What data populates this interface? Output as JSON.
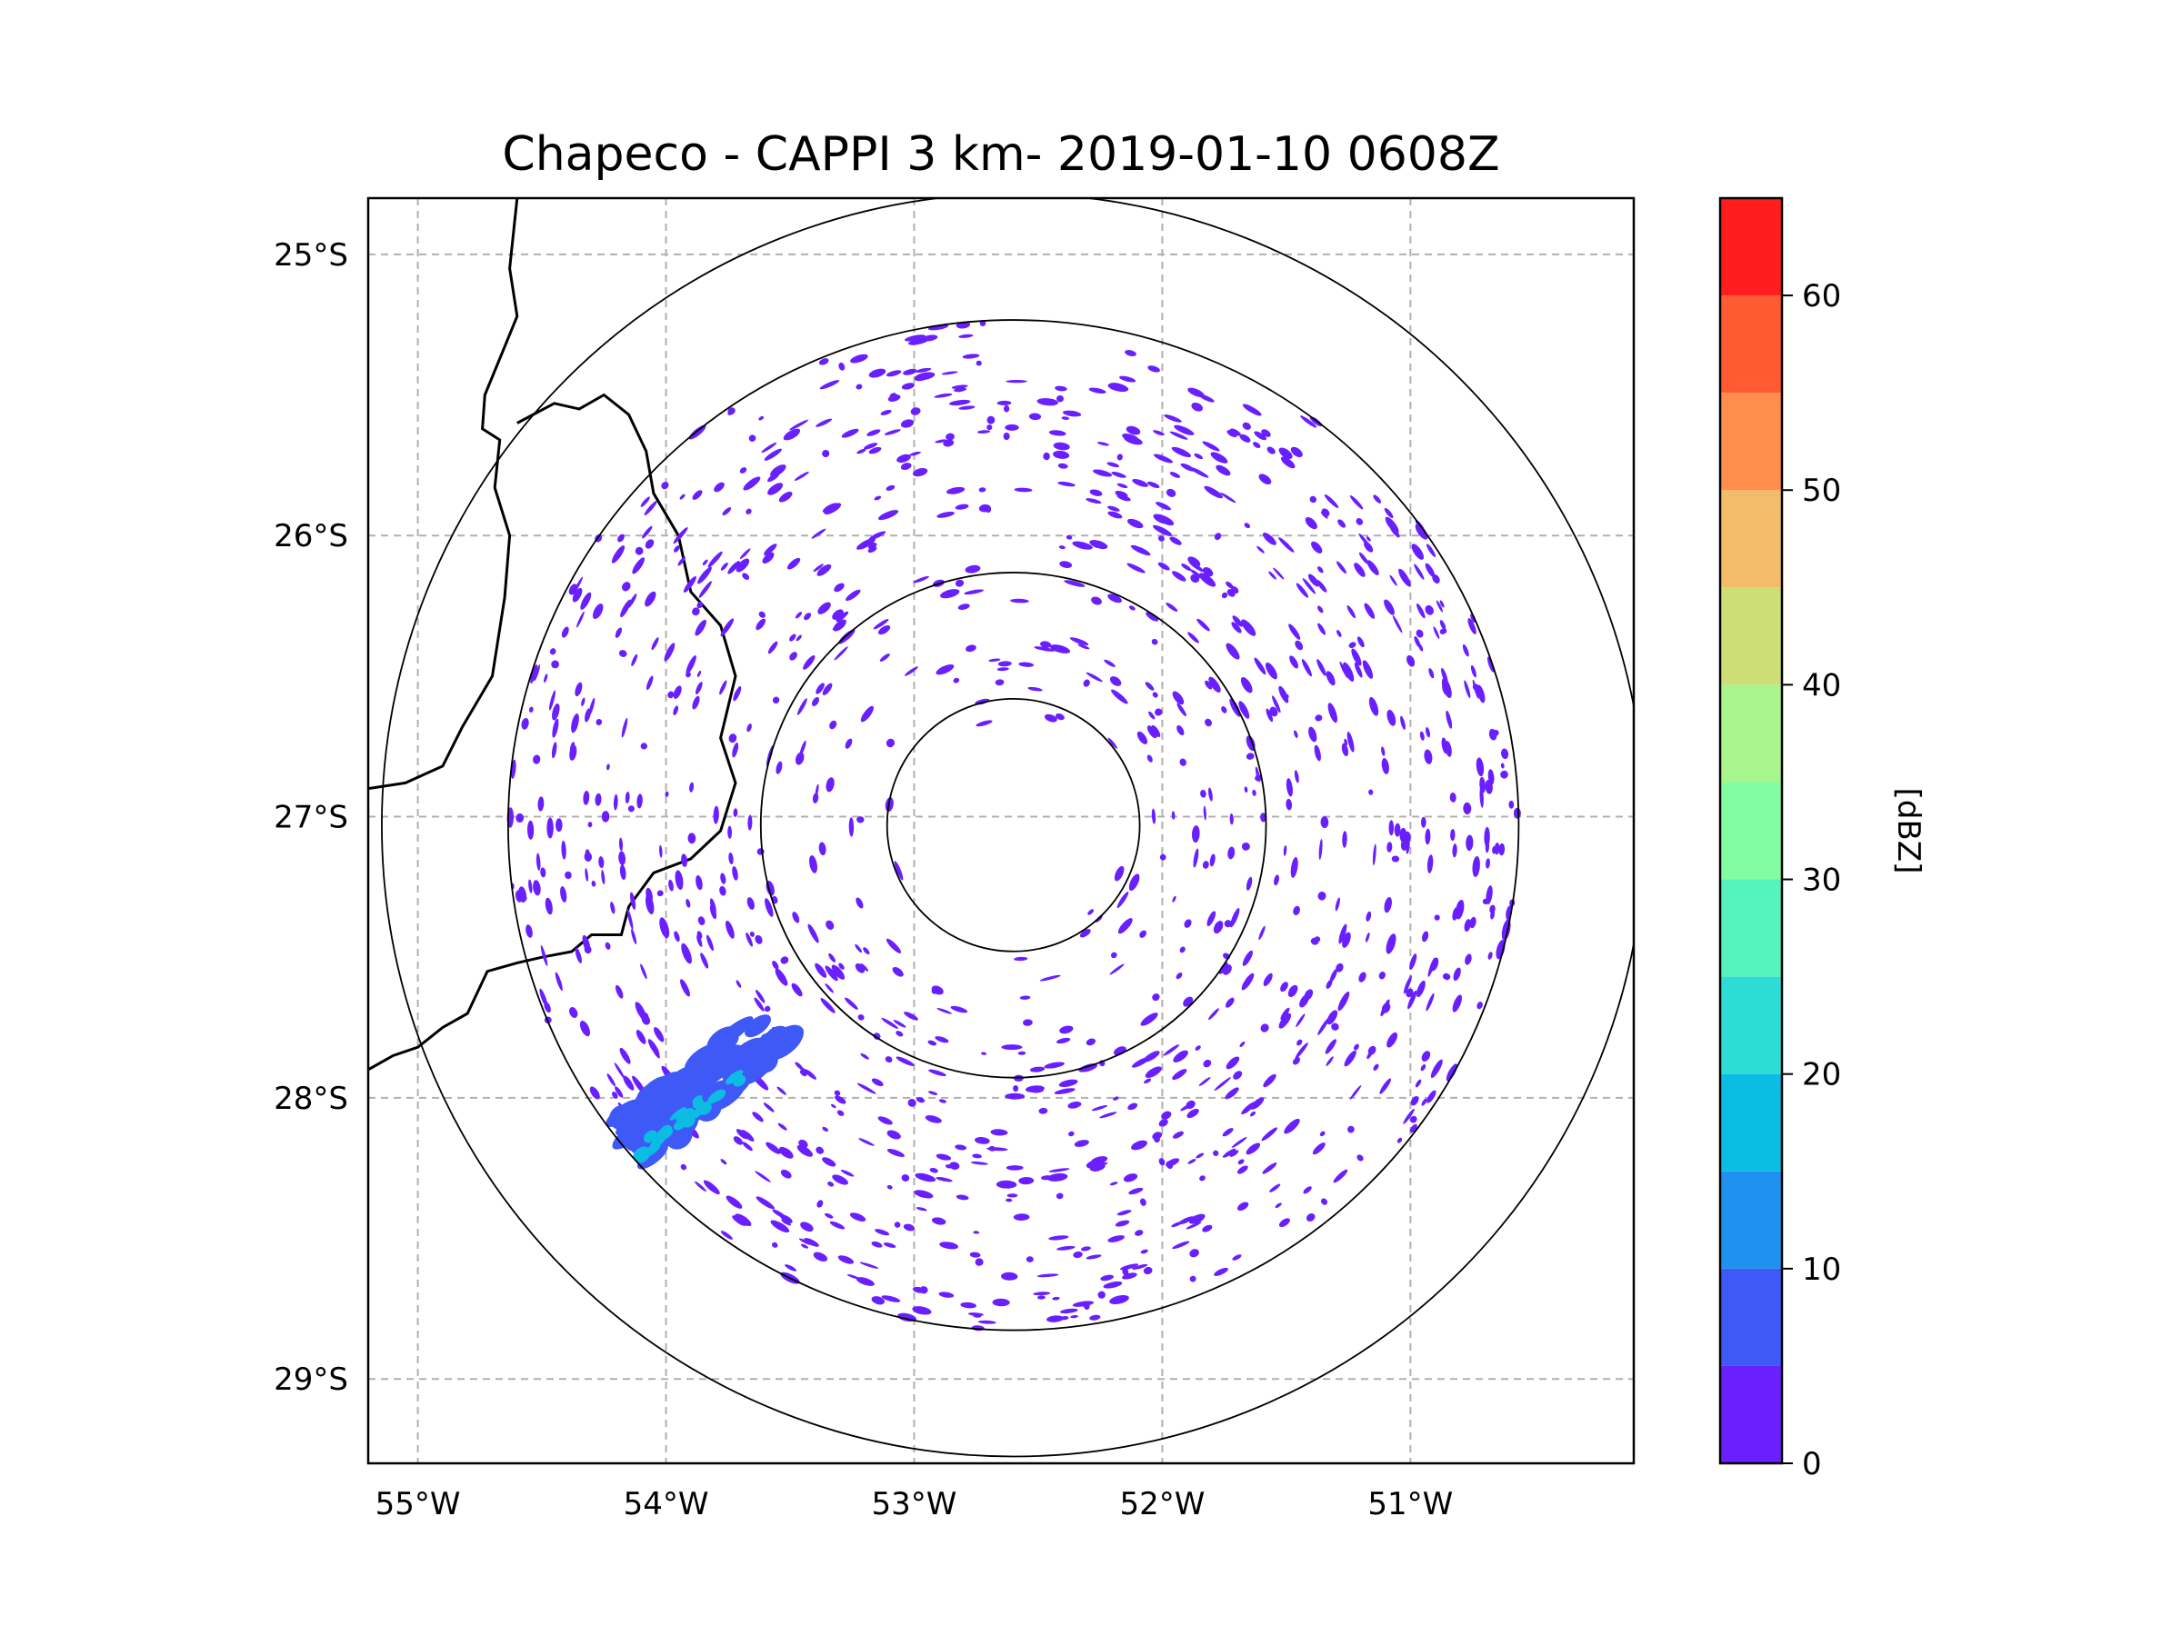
{
  "chart_data": {
    "type": "heatmap",
    "title": "Chapeco - CAPPI 3 km- 2019-01-10 0608Z",
    "map": {
      "projection": "lat-lon map",
      "lon_range": [
        -55.2,
        -50.1
      ],
      "lat_range": [
        -29.3,
        -24.8
      ],
      "gridlines": true,
      "coastline_borders": true
    },
    "x_ticks": [
      {
        "value": -55,
        "label": "55°W"
      },
      {
        "value": -54,
        "label": "54°W"
      },
      {
        "value": -53,
        "label": "53°W"
      },
      {
        "value": -52,
        "label": "52°W"
      },
      {
        "value": -51,
        "label": "51°W"
      }
    ],
    "y_ticks": [
      {
        "value": -25,
        "label": "25°S"
      },
      {
        "value": -26,
        "label": "26°S"
      },
      {
        "value": -27,
        "label": "27°S"
      },
      {
        "value": -28,
        "label": "28°S"
      },
      {
        "value": -29,
        "label": "29°S"
      }
    ],
    "radar": {
      "center_lon": -52.6,
      "center_lat": -27.03,
      "range_rings_km": [
        50,
        100,
        200,
        250
      ]
    },
    "colorbar": {
      "label": "[dBZ]",
      "min": 0,
      "max": 65,
      "step": 5,
      "colors": [
        "#6a1fff",
        "#3f59f7",
        "#1f91ee",
        "#0cbde3",
        "#2ddcd5",
        "#55f3bd",
        "#84fca4",
        "#a7f58c",
        "#cede76",
        "#f2bc68",
        "#ff8e4d",
        "#ff5a31",
        "#ff1d1d"
      ],
      "ticks": [
        {
          "value": 0,
          "label": "0"
        },
        {
          "value": 10,
          "label": "10"
        },
        {
          "value": 20,
          "label": "20"
        },
        {
          "value": 30,
          "label": "30"
        },
        {
          "value": 40,
          "label": "40"
        },
        {
          "value": 50,
          "label": "50"
        },
        {
          "value": 60,
          "label": "60"
        }
      ]
    },
    "echo_regions": [
      {
        "name": "scattered clutter echoes",
        "dbz": 2,
        "min_range_km": 40,
        "max_range_km": 200
      },
      {
        "name": "south-west rainband",
        "dbz": 5,
        "lon": -53.85,
        "lat": -27.95
      },
      {
        "name": "south-west rainband core",
        "dbz": 18,
        "lon": -53.9,
        "lat": -28.05
      }
    ]
  }
}
